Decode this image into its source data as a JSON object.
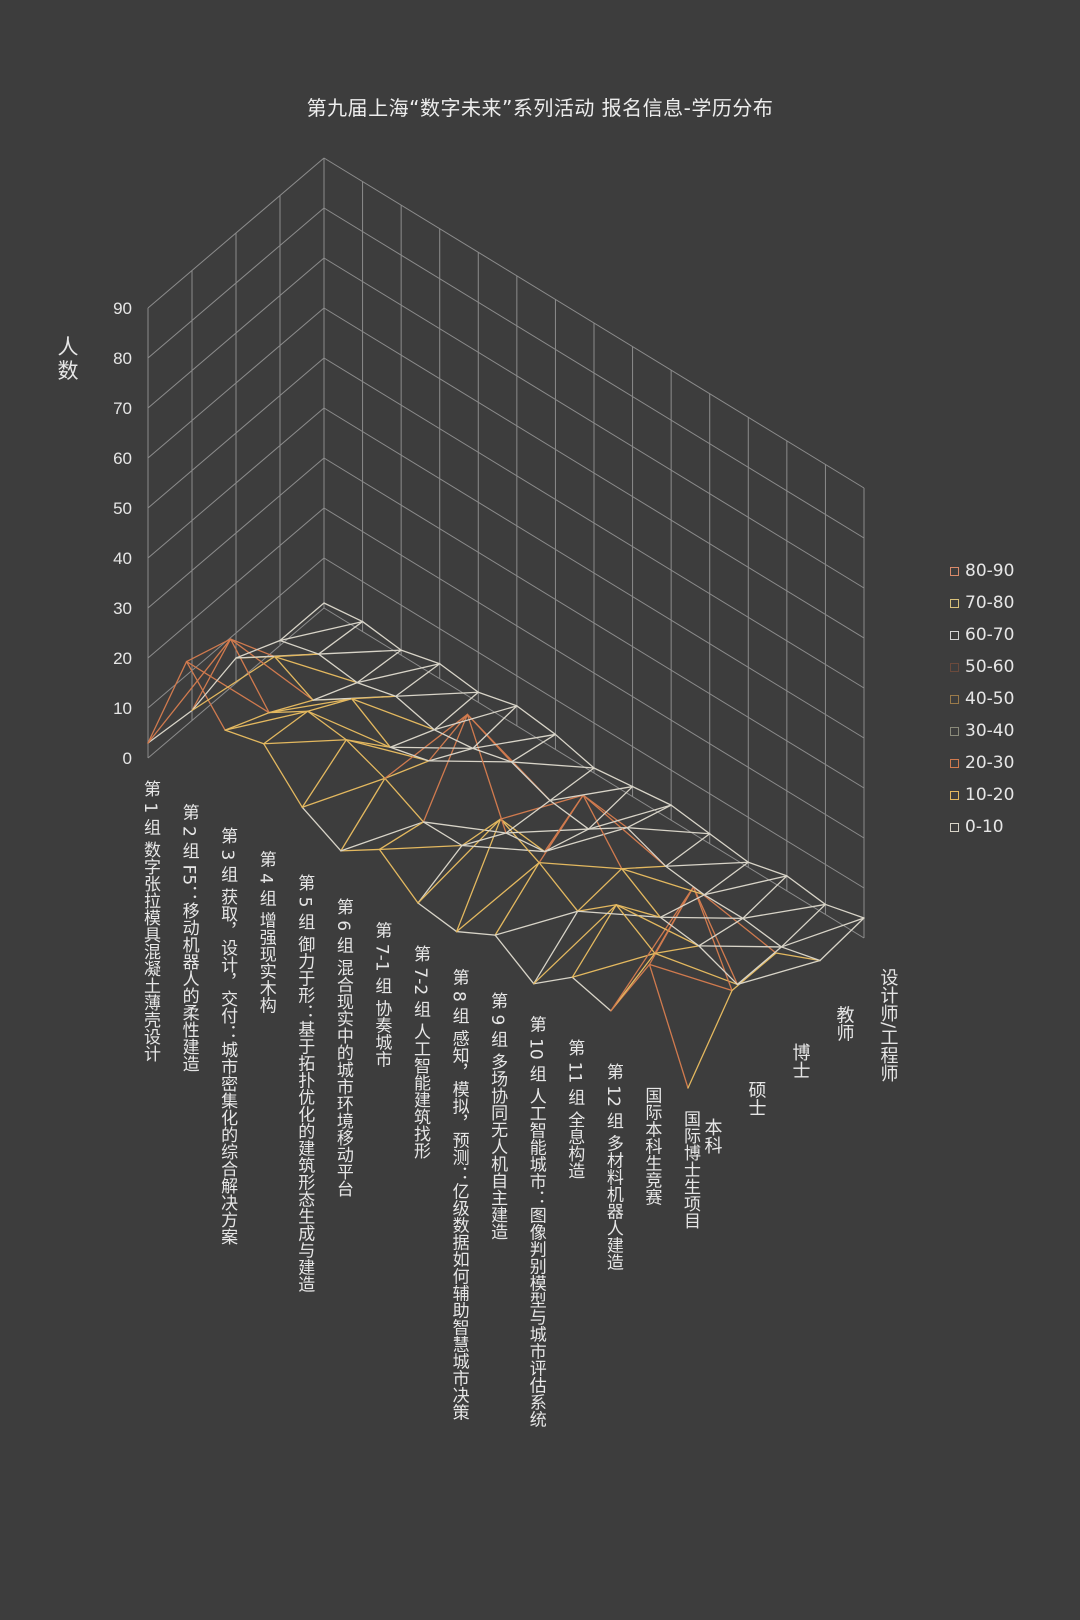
{
  "chart_data": {
    "type": "surface",
    "title": "第九届上海“数字未来”系列活动   报名信息-学历分布",
    "zlabel": "人数",
    "zlim": [
      0,
      90
    ],
    "zticks": [
      0,
      10,
      20,
      30,
      40,
      50,
      60,
      70,
      80,
      90
    ],
    "categories": [
      "第 1 组    数字张拉模具混凝土薄壳设计",
      "第 2 组    F5：移动机器人的柔性建造",
      "第 3 组    获取，设计，交付：城市密集化的综合解决方案",
      "第 4 组    增强现实木构",
      "第 5 组    御力于形：基于拓扑优化的建筑形态生成与建造",
      "第 6 组    混合现实中的城市环境移动平台",
      "第 7-1 组    协奏城市",
      "第 7-2 组    人工智能建筑找形",
      "第 8 组    感知，模拟，预测：亿级数据如何辅助智慧城市决策",
      "第 9 组    多场协同无人机自主建造",
      "第 10 组    人工智能城市：图像判别模型与城市评估系统",
      "第 11 组    全息构造",
      "第 12 组    多材料机器人建造",
      "国际本科生竞赛",
      "国际博士生项目"
    ],
    "series": [
      {
        "name": "本科",
        "values": [
          3,
          24,
          15,
          17,
          9,
          5,
          10,
          4,
          3,
          7,
          2,
          8,
          6,
          20,
          0
        ]
      },
      {
        "name": "硕士",
        "values": [
          2,
          21,
          11,
          16,
          15,
          12,
          8,
          8,
          18,
          14,
          9,
          15,
          10,
          28,
          12
        ]
      },
      {
        "name": "博士",
        "values": [
          5,
          10,
          6,
          11,
          6,
          8,
          22,
          3,
          4,
          20,
          10,
          5,
          4,
          1,
          12
        ]
      },
      {
        "name": "教师",
        "values": [
          1,
          3,
          2,
          4,
          2,
          3,
          5,
          2,
          1,
          6,
          3,
          2,
          2,
          1,
          3
        ]
      },
      {
        "name": "设计师/工程师",
        "values": [
          1,
          2,
          1,
          3,
          2,
          4,
          3,
          1,
          2,
          3,
          2,
          1,
          3,
          2,
          4
        ]
      }
    ],
    "legend": {
      "position": "right",
      "items": [
        {
          "label": "80-90",
          "color": "#d98a6a"
        },
        {
          "label": "70-80",
          "color": "#d8c07a"
        },
        {
          "label": "60-70",
          "color": "#d6d6d6"
        },
        {
          "label": "50-60",
          "color": "#6b4a3c"
        },
        {
          "label": "40-50",
          "color": "#9a7a4a"
        },
        {
          "label": "30-40",
          "color": "#8a8a7a"
        },
        {
          "label": "20-30",
          "color": "#d07a4e"
        },
        {
          "label": "10-20",
          "color": "#e3b85f"
        },
        {
          "label": "0-10",
          "color": "#d8d4c8"
        }
      ]
    },
    "grid": true
  }
}
